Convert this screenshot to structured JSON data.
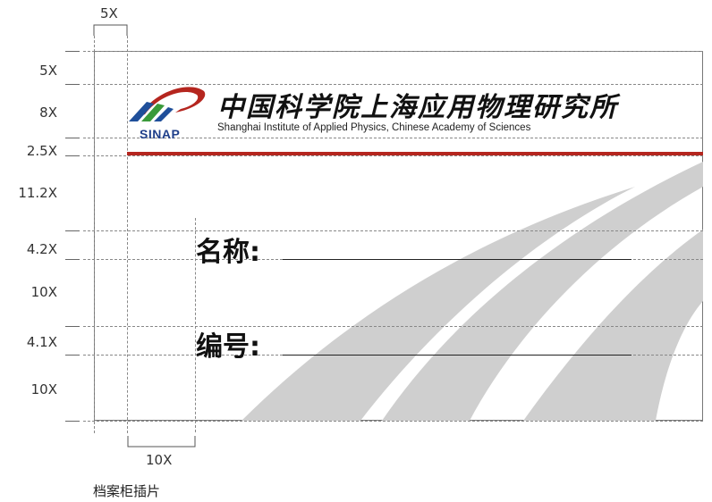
{
  "dimensions": {
    "top_margin": "5X",
    "bottom_margin": "10X",
    "rows": [
      "5X",
      "8X",
      "2.5X",
      "11.2X",
      "4.2X",
      "10X",
      "4.1X",
      "10X"
    ]
  },
  "org": {
    "logo_text": "SINAP",
    "name_cn": "中国科学院上海应用物理研究所",
    "name_en": "Shanghai Institute of Applied Physics, Chinese Academy of Sciences"
  },
  "fields": {
    "name_label": "名称:",
    "number_label": "编号:"
  },
  "caption": "档案柜插片",
  "colors": {
    "accent_red": "#b5261f",
    "stripe_gray": "#cfcfcf",
    "logo_blue": "#1f4f9a",
    "logo_green": "#3a9a3a"
  }
}
